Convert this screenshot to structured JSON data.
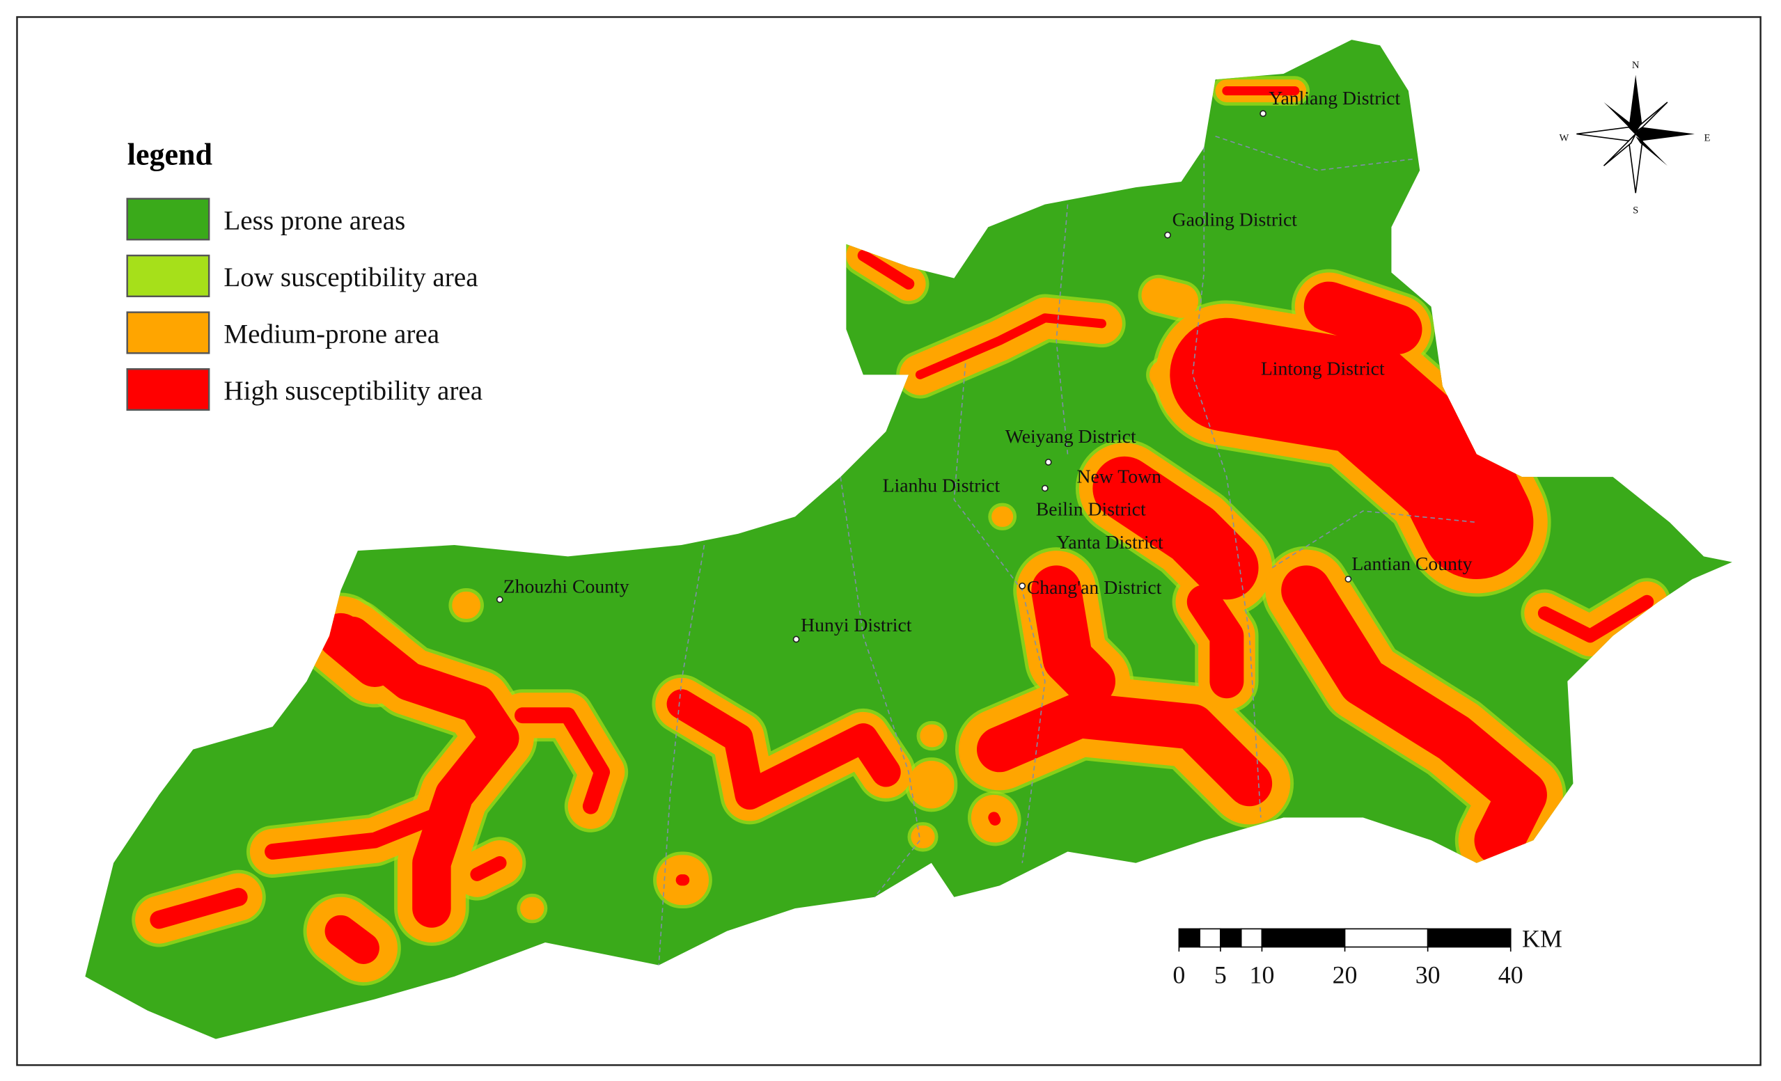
{
  "legend": {
    "title": "legend",
    "items": [
      {
        "label": "Less prone areas",
        "color": "#3aaa1a"
      },
      {
        "label": "Low susceptibility area",
        "color": "#a6e01a"
      },
      {
        "label": "Medium-prone area",
        "color": "#ffa500"
      },
      {
        "label": "High susceptibility area",
        "color": "#ff0000"
      }
    ]
  },
  "places": [
    {
      "name": "Yanliang District"
    },
    {
      "name": "Gaoling District"
    },
    {
      "name": "Lintong District"
    },
    {
      "name": "Weiyang District"
    },
    {
      "name": "New Town"
    },
    {
      "name": "Lianhu District"
    },
    {
      "name": "Beilin District"
    },
    {
      "name": "Yanta District"
    },
    {
      "name": "Chang'an District"
    },
    {
      "name": "Lantian County"
    },
    {
      "name": "Zhouzhi County"
    },
    {
      "name": "Hunyi District"
    }
  ],
  "compass": {
    "north": "N",
    "south": "S",
    "west": "W",
    "east": "E"
  },
  "scale_bar": {
    "unit": "KM",
    "ticks": [
      0,
      5,
      10,
      20,
      30,
      40
    ]
  }
}
